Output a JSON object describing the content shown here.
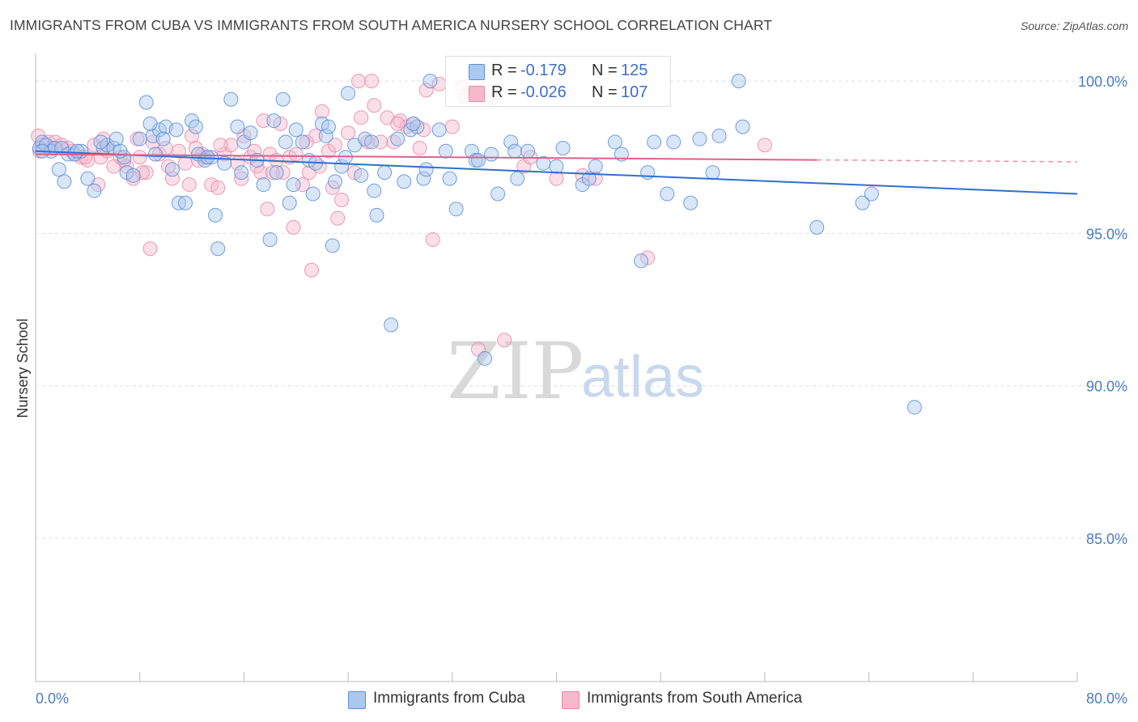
{
  "title": "IMMIGRANTS FROM CUBA VS IMMIGRANTS FROM SOUTH AMERICA NURSERY SCHOOL CORRELATION CHART",
  "source": "Source: ZipAtlas.com",
  "watermark": {
    "zip": "ZIP",
    "atlas": "atlas"
  },
  "colors": {
    "blue_fill": "#aac8f0",
    "blue_stroke": "#5a8fd6",
    "blue_line": "#2f6fd0",
    "pink_fill": "#f7b8cb",
    "pink_stroke": "#e889a8",
    "pink_line": "#e0608a",
    "tick_text": "#4a7cc7",
    "grid": "#dddddd"
  },
  "legend": {
    "rows": [
      {
        "r_label": "R =",
        "r_value": "-0.179",
        "n_label": "N =",
        "n_value": "125"
      },
      {
        "r_label": "R =",
        "r_value": "-0.026",
        "n_label": "N =",
        "n_value": "107"
      }
    ]
  },
  "bottom_legend": [
    "Immigrants from Cuba",
    "Immigrants from South America"
  ],
  "chart_data": {
    "type": "scatter",
    "title": "IMMIGRANTS FROM CUBA VS IMMIGRANTS FROM SOUTH AMERICA NURSERY SCHOOL CORRELATION CHART",
    "xlabel": "",
    "ylabel": "Nursery School",
    "xlim": [
      0,
      80
    ],
    "ylim": [
      80.3,
      100.8
    ],
    "x_tick_labels": [
      "0.0%",
      "80.0%"
    ],
    "y_ticks": [
      100,
      95,
      90,
      85
    ],
    "y_tick_labels": [
      "100.0%",
      "95.0%",
      "90.0%",
      "85.0%"
    ],
    "grid": true,
    "series": [
      {
        "name": "Immigrants from Cuba",
        "r": -0.179,
        "n": 125,
        "trend": {
          "x": [
            0,
            80
          ],
          "y": [
            97.7,
            96.3
          ],
          "dashed_from": null
        },
        "points": [
          [
            0.3,
            97.8
          ],
          [
            0.5,
            98.0
          ],
          [
            0.8,
            97.9
          ],
          [
            1.2,
            97.7
          ],
          [
            1.5,
            97.8
          ],
          [
            2.0,
            97.8
          ],
          [
            2.5,
            97.6
          ],
          [
            3.0,
            97.6
          ],
          [
            3.5,
            97.7
          ],
          [
            1.8,
            97.1
          ],
          [
            2.2,
            96.7
          ],
          [
            4.0,
            96.8
          ],
          [
            4.5,
            96.4
          ],
          [
            5.2,
            97.8
          ],
          [
            5.5,
            97.9
          ],
          [
            5.0,
            98.0
          ],
          [
            6.0,
            97.8
          ],
          [
            6.2,
            98.1
          ],
          [
            6.8,
            97.5
          ],
          [
            7.0,
            97.0
          ],
          [
            7.5,
            96.9
          ],
          [
            8.0,
            98.1
          ],
          [
            8.5,
            99.3
          ],
          [
            9.0,
            98.2
          ],
          [
            9.2,
            97.6
          ],
          [
            9.5,
            98.4
          ],
          [
            10.0,
            98.5
          ],
          [
            10.5,
            97.1
          ],
          [
            10.8,
            98.4
          ],
          [
            11.0,
            96.0
          ],
          [
            11.5,
            96.0
          ],
          [
            12.0,
            98.7
          ],
          [
            12.3,
            98.5
          ],
          [
            12.5,
            97.6
          ],
          [
            13.0,
            97.4
          ],
          [
            13.5,
            97.5
          ],
          [
            13.8,
            95.6
          ],
          [
            14.0,
            94.5
          ],
          [
            14.5,
            97.3
          ],
          [
            15.0,
            99.4
          ],
          [
            15.5,
            98.5
          ],
          [
            15.8,
            97.0
          ],
          [
            16.0,
            98.0
          ],
          [
            16.5,
            98.3
          ],
          [
            17.0,
            97.4
          ],
          [
            17.5,
            96.6
          ],
          [
            18.0,
            94.8
          ],
          [
            18.3,
            98.7
          ],
          [
            18.5,
            97.0
          ],
          [
            19.0,
            99.4
          ],
          [
            19.5,
            96.0
          ],
          [
            19.8,
            96.6
          ],
          [
            20.0,
            98.4
          ],
          [
            20.5,
            98.0
          ],
          [
            21.0,
            97.4
          ],
          [
            21.3,
            96.3
          ],
          [
            21.5,
            97.3
          ],
          [
            22.0,
            98.6
          ],
          [
            22.3,
            98.2
          ],
          [
            22.5,
            98.5
          ],
          [
            22.8,
            94.6
          ],
          [
            23.0,
            96.7
          ],
          [
            23.5,
            97.2
          ],
          [
            24.0,
            99.6
          ],
          [
            24.5,
            97.9
          ],
          [
            25.0,
            96.9
          ],
          [
            25.3,
            98.1
          ],
          [
            25.8,
            98.0
          ],
          [
            26.0,
            96.4
          ],
          [
            26.2,
            95.6
          ],
          [
            26.8,
            97.0
          ],
          [
            27.3,
            92.0
          ],
          [
            27.8,
            98.1
          ],
          [
            28.3,
            96.7
          ],
          [
            28.8,
            98.4
          ],
          [
            29.3,
            98.5
          ],
          [
            29.8,
            96.8
          ],
          [
            30.0,
            97.1
          ],
          [
            30.3,
            100.0
          ],
          [
            31.0,
            98.4
          ],
          [
            31.5,
            97.7
          ],
          [
            31.8,
            96.8
          ],
          [
            32.3,
            95.8
          ],
          [
            33.5,
            97.7
          ],
          [
            33.8,
            97.4
          ],
          [
            34.0,
            97.4
          ],
          [
            34.5,
            90.9
          ],
          [
            35.0,
            97.6
          ],
          [
            35.5,
            96.3
          ],
          [
            36.5,
            98.0
          ],
          [
            36.8,
            97.7
          ],
          [
            37.0,
            96.8
          ],
          [
            37.8,
            97.7
          ],
          [
            39.0,
            97.3
          ],
          [
            40.0,
            97.2
          ],
          [
            40.5,
            97.8
          ],
          [
            42.0,
            96.6
          ],
          [
            42.5,
            96.8
          ],
          [
            43.0,
            97.2
          ],
          [
            44.5,
            98.0
          ],
          [
            45.0,
            97.6
          ],
          [
            46.5,
            94.1
          ],
          [
            47.0,
            97.0
          ],
          [
            47.5,
            98.0
          ],
          [
            48.5,
            96.3
          ],
          [
            49.0,
            98.0
          ],
          [
            50.3,
            96.0
          ],
          [
            51.0,
            98.1
          ],
          [
            52.0,
            97.0
          ],
          [
            52.5,
            98.2
          ],
          [
            54.0,
            100.0
          ],
          [
            54.3,
            98.5
          ],
          [
            60.0,
            95.2
          ],
          [
            63.5,
            96.0
          ],
          [
            64.2,
            96.3
          ],
          [
            67.5,
            89.3
          ],
          [
            0.5,
            97.7
          ],
          [
            3.2,
            97.7
          ],
          [
            29.0,
            98.6
          ],
          [
            13.2,
            97.5
          ],
          [
            6.5,
            97.7
          ],
          [
            9.8,
            98.1
          ],
          [
            8.8,
            98.6
          ],
          [
            19.2,
            98.0
          ],
          [
            23.8,
            97.5
          ]
        ]
      },
      {
        "name": "Immigrants from South America",
        "r": -0.026,
        "n": 107,
        "trend": {
          "x": [
            0,
            80
          ],
          "y": [
            97.6,
            97.35
          ],
          "dashed_from": 60
        },
        "points": [
          [
            0.2,
            98.2
          ],
          [
            0.5,
            97.9
          ],
          [
            1.0,
            98.0
          ],
          [
            1.5,
            98.0
          ],
          [
            2.0,
            97.9
          ],
          [
            2.5,
            97.8
          ],
          [
            3.0,
            97.6
          ],
          [
            3.5,
            97.5
          ],
          [
            4.0,
            97.4
          ],
          [
            4.5,
            97.9
          ],
          [
            5.0,
            97.5
          ],
          [
            5.5,
            97.7
          ],
          [
            6.0,
            97.2
          ],
          [
            6.5,
            97.5
          ],
          [
            7.0,
            97.2
          ],
          [
            7.5,
            96.8
          ],
          [
            8.0,
            97.5
          ],
          [
            8.5,
            97.0
          ],
          [
            8.8,
            94.5
          ],
          [
            9.0,
            98.0
          ],
          [
            9.5,
            97.6
          ],
          [
            10.0,
            97.8
          ],
          [
            10.5,
            96.8
          ],
          [
            11.0,
            97.7
          ],
          [
            11.5,
            97.3
          ],
          [
            12.0,
            98.2
          ],
          [
            12.3,
            97.8
          ],
          [
            12.5,
            97.4
          ],
          [
            13.0,
            97.5
          ],
          [
            13.5,
            96.6
          ],
          [
            14.0,
            96.5
          ],
          [
            14.5,
            97.6
          ],
          [
            15.0,
            97.9
          ],
          [
            15.5,
            97.3
          ],
          [
            16.0,
            98.2
          ],
          [
            16.5,
            97.5
          ],
          [
            17.0,
            97.2
          ],
          [
            17.3,
            97.0
          ],
          [
            17.8,
            95.8
          ],
          [
            18.0,
            97.6
          ],
          [
            18.5,
            97.4
          ],
          [
            18.8,
            98.6
          ],
          [
            19.0,
            97.0
          ],
          [
            19.5,
            97.5
          ],
          [
            20.0,
            97.6
          ],
          [
            20.5,
            96.6
          ],
          [
            21.0,
            97.0
          ],
          [
            21.5,
            98.2
          ],
          [
            22.0,
            99.0
          ],
          [
            22.5,
            97.7
          ],
          [
            23.0,
            97.9
          ],
          [
            23.5,
            96.1
          ],
          [
            24.0,
            98.3
          ],
          [
            24.5,
            97.0
          ],
          [
            25.0,
            98.8
          ],
          [
            25.5,
            98.0
          ],
          [
            26.0,
            99.2
          ],
          [
            26.5,
            98.0
          ],
          [
            27.0,
            98.8
          ],
          [
            27.5,
            98.0
          ],
          [
            28.0,
            98.7
          ],
          [
            28.5,
            98.5
          ],
          [
            29.0,
            98.6
          ],
          [
            29.5,
            97.8
          ],
          [
            30.0,
            99.7
          ],
          [
            30.5,
            94.8
          ],
          [
            31.0,
            99.9
          ],
          [
            32.0,
            98.5
          ],
          [
            33.0,
            99.5
          ],
          [
            34.0,
            91.2
          ],
          [
            35.0,
            99.4
          ],
          [
            36.0,
            91.5
          ],
          [
            37.5,
            97.2
          ],
          [
            38.0,
            97.5
          ],
          [
            40.0,
            96.8
          ],
          [
            42.0,
            96.9
          ],
          [
            43.0,
            96.8
          ],
          [
            47.0,
            94.2
          ],
          [
            56.0,
            97.9
          ],
          [
            0.3,
            97.7
          ],
          [
            1.2,
            97.8
          ],
          [
            2.8,
            97.7
          ],
          [
            5.2,
            98.1
          ],
          [
            7.8,
            98.1
          ],
          [
            10.2,
            97.2
          ],
          [
            11.8,
            96.6
          ],
          [
            14.2,
            97.9
          ],
          [
            16.8,
            97.7
          ],
          [
            19.8,
            95.2
          ],
          [
            21.2,
            93.8
          ],
          [
            22.8,
            96.5
          ],
          [
            24.8,
            100.0
          ],
          [
            27.8,
            98.6
          ],
          [
            29.8,
            98.4
          ],
          [
            32.8,
            99.8
          ],
          [
            15.8,
            96.8
          ],
          [
            18.2,
            97.0
          ],
          [
            12.8,
            97.6
          ],
          [
            8.2,
            97.0
          ],
          [
            4.8,
            96.6
          ],
          [
            21.8,
            97.2
          ],
          [
            23.2,
            95.5
          ],
          [
            25.8,
            100.0
          ],
          [
            20.8,
            98.0
          ],
          [
            17.5,
            98.7
          ],
          [
            3.8,
            97.5
          ],
          [
            6.8,
            97.4
          ]
        ]
      }
    ]
  }
}
